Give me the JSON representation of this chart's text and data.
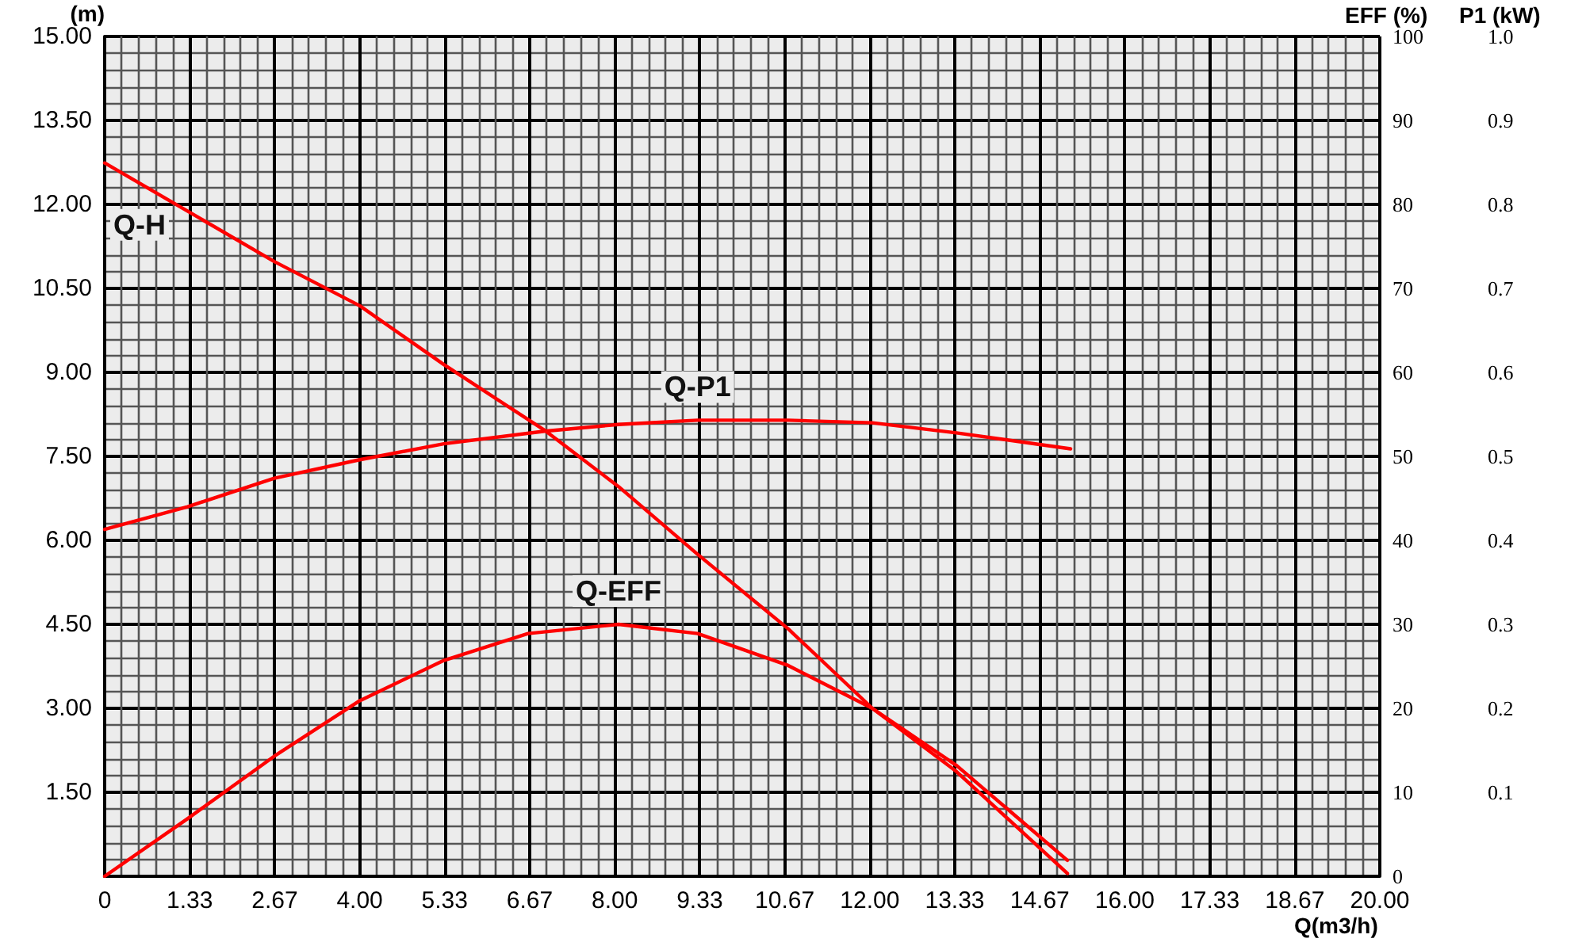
{
  "chart_data": {
    "type": "line",
    "xlabel": "Q(m3/h)",
    "ylabel": "(m)",
    "y2label": "EFF (%)",
    "y3label": "P1 (kW)",
    "xlim": [
      0,
      20
    ],
    "xticks": [
      {
        "value": 0,
        "label": "0"
      },
      {
        "value": 1.333,
        "label": "1.33"
      },
      {
        "value": 2.667,
        "label": "2.67"
      },
      {
        "value": 4,
        "label": "4.00"
      },
      {
        "value": 5.333,
        "label": "5.33"
      },
      {
        "value": 6.667,
        "label": "6.67"
      },
      {
        "value": 8,
        "label": "8.00"
      },
      {
        "value": 9.333,
        "label": "9.33"
      },
      {
        "value": 10.667,
        "label": "10.67"
      },
      {
        "value": 12,
        "label": "12.00"
      },
      {
        "value": 13.333,
        "label": "13.33"
      },
      {
        "value": 14.667,
        "label": "14.67"
      },
      {
        "value": 16,
        "label": "16.00"
      },
      {
        "value": 17.333,
        "label": "17.33"
      },
      {
        "value": 18.667,
        "label": "18.67"
      },
      {
        "value": 20,
        "label": "20.00"
      }
    ],
    "ylim": [
      0,
      15
    ],
    "yticks": [
      {
        "value": 1.5,
        "label": "1.50"
      },
      {
        "value": 3,
        "label": "3.00"
      },
      {
        "value": 4.5,
        "label": "4.50"
      },
      {
        "value": 6,
        "label": "6.00"
      },
      {
        "value": 7.5,
        "label": "7.50"
      },
      {
        "value": 9,
        "label": "9.00"
      },
      {
        "value": 10.5,
        "label": "10.50"
      },
      {
        "value": 12,
        "label": "12.00"
      },
      {
        "value": 13.5,
        "label": "13.50"
      },
      {
        "value": 15,
        "label": "15.00"
      }
    ],
    "y2lim": [
      0,
      100
    ],
    "y2ticks": [
      0,
      10,
      20,
      30,
      40,
      50,
      60,
      70,
      80,
      90,
      100
    ],
    "y3lim": [
      0,
      1
    ],
    "y3ticks": [
      0.1,
      0.2,
      0.3,
      0.4,
      0.5,
      0.6,
      0.7,
      0.8,
      0.9,
      {
        "value": 1,
        "label": "1.0"
      }
    ],
    "grid": true,
    "legend": false,
    "marker": "none",
    "line_style": "solid",
    "series": [
      {
        "name": "Q-H",
        "color": "#ff0000",
        "x": [
          0,
          2.66,
          4.0,
          5.32,
          6.92,
          8.06,
          9.3,
          10.72,
          12.04,
          13.36,
          15.1
        ],
        "values": [
          12.74,
          10.98,
          10.19,
          9.14,
          7.95,
          6.96,
          5.75,
          4.42,
          3.0,
          1.87,
          0.05
        ]
      },
      {
        "name": "Q-P1",
        "color": "#ff0000",
        "axis": "y3",
        "x": [
          0,
          1.3,
          2.66,
          4.0,
          5.32,
          6.9,
          8.06,
          9.3,
          10.72,
          12.04,
          13.36,
          15.15
        ],
        "values": [
          0.413,
          0.44,
          0.474,
          0.496,
          0.515,
          0.53,
          0.538,
          0.543,
          0.543,
          0.54,
          0.528,
          0.509
        ]
      },
      {
        "name": "Q-EFF",
        "color": "#ff0000",
        "axis": "y2",
        "x": [
          0,
          1.29,
          2.66,
          4.0,
          5.32,
          6.64,
          8.06,
          9.3,
          10.72,
          12.04,
          13.36,
          15.1
        ],
        "values": [
          0,
          6.8,
          14.3,
          20.9,
          25.7,
          28.9,
          30.0,
          28.9,
          25.1,
          20.0,
          13.2,
          1.9
        ]
      }
    ]
  }
}
